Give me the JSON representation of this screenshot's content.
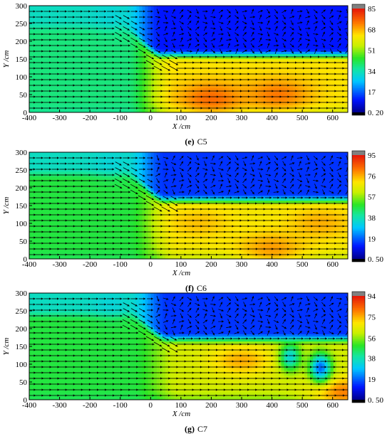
{
  "chart_data": [
    {
      "type": "heatmap",
      "caption_letter": "(e)",
      "caption_name": "C5",
      "xlabel": "X /cm",
      "ylabel": "Y /cm",
      "xlim": [
        -400,
        650
      ],
      "ylim": [
        0,
        300
      ],
      "xticks": [
        -400,
        -300,
        -200,
        -100,
        0,
        100,
        200,
        300,
        400,
        500,
        600
      ],
      "yticks": [
        0,
        50,
        100,
        150,
        200,
        250,
        300
      ],
      "colorbar_ticks": [
        85,
        68,
        51,
        34,
        17,
        0.2
      ],
      "colorbar_labels": [
        "85",
        "68",
        "51",
        "34",
        "17",
        "0. 20"
      ],
      "colorbar_range": [
        0.2,
        85
      ],
      "field": {
        "inflow": 45,
        "jet": 74,
        "upper": 12,
        "shear_y": 160,
        "sep_x": -40,
        "hot_spots": [
          [
            200,
            40,
            88
          ],
          [
            420,
            50,
            86
          ]
        ],
        "cold_spots": []
      }
    },
    {
      "type": "heatmap",
      "caption_letter": "(f)",
      "caption_name": "C6",
      "xlabel": "X /cm",
      "ylabel": "Y /cm",
      "xlim": [
        -400,
        650
      ],
      "ylim": [
        0,
        300
      ],
      "xticks": [
        -400,
        -300,
        -200,
        -100,
        0,
        100,
        200,
        300,
        400,
        500,
        600
      ],
      "yticks": [
        0,
        50,
        100,
        150,
        200,
        250,
        300
      ],
      "colorbar_ticks": [
        95,
        76,
        57,
        38,
        19,
        0.5
      ],
      "colorbar_labels": [
        "95",
        "76",
        "57",
        "38",
        "19",
        "0. 50"
      ],
      "colorbar_range": [
        0.5,
        95
      ],
      "field": {
        "inflow": 50,
        "jet": 72,
        "upper": 15,
        "shear_y": 165,
        "sep_x": -30,
        "hot_spots": [
          [
            400,
            30,
            82
          ],
          [
            160,
            100,
            78
          ],
          [
            560,
            100,
            80
          ]
        ],
        "cold_spots": []
      }
    },
    {
      "type": "heatmap",
      "caption_letter": "(g)",
      "caption_name": "C7",
      "xlabel": "X /cm",
      "ylabel": "Y /cm",
      "xlim": [
        -400,
        650
      ],
      "ylim": [
        0,
        300
      ],
      "xticks": [
        -400,
        -300,
        -200,
        -100,
        0,
        100,
        200,
        300,
        400,
        500,
        600
      ],
      "yticks": [
        0,
        50,
        100,
        150,
        200,
        250,
        300
      ],
      "colorbar_ticks": [
        94,
        75,
        56,
        38,
        19,
        0.5
      ],
      "colorbar_labels": [
        "94",
        "75",
        "56",
        "38",
        "19",
        "0. 50"
      ],
      "colorbar_range": [
        0.5,
        94
      ],
      "field": {
        "inflow": 50,
        "jet": 66,
        "upper": 15,
        "shear_y": 170,
        "sep_x": -20,
        "hot_spots": [
          [
            300,
            110,
            80
          ],
          [
            640,
            20,
            85
          ]
        ],
        "cold_spots": [
          [
            560,
            90,
            20
          ],
          [
            460,
            120,
            35
          ]
        ]
      }
    }
  ]
}
